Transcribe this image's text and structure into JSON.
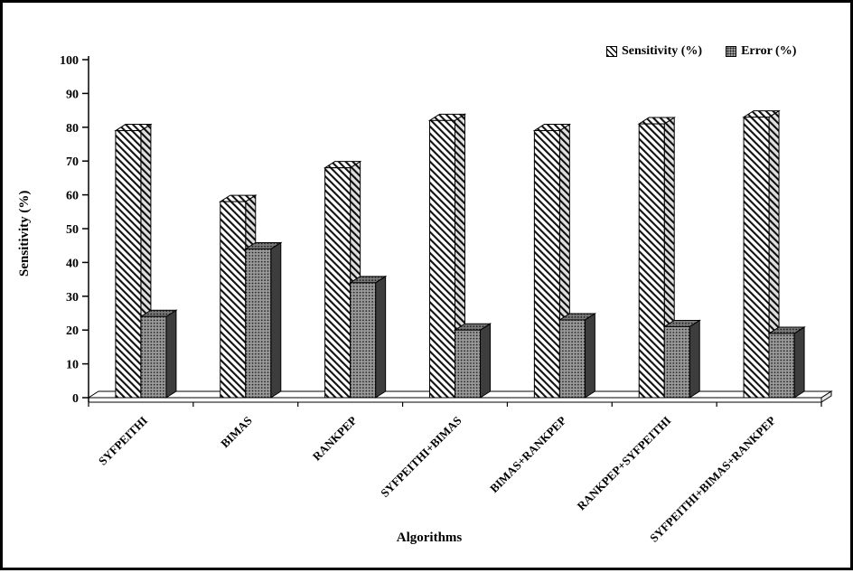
{
  "frame": {
    "background": "#ffffff",
    "border_color": "#000000"
  },
  "legend": {
    "items": [
      {
        "label": "Sensitivity (%)",
        "swatch": "diagonal-hatch"
      },
      {
        "label": "Error (%)",
        "swatch": "dot-grid"
      }
    ]
  },
  "axes": {
    "ylabel": "Sensitivity (%)",
    "xlabel": "Algorithms",
    "yticks": [
      0,
      10,
      20,
      30,
      40,
      50,
      60,
      70,
      80,
      90,
      100
    ]
  },
  "chart_data": {
    "type": "bar",
    "style": "3d",
    "title": "",
    "xlabel": "Algorithms",
    "ylabel": "Sensitivity (%)",
    "ylim": [
      0,
      100
    ],
    "ytick_step": 10,
    "grid": false,
    "legend_position": "top-right",
    "categories": [
      "SYFPEITHI",
      "BIMAS",
      "RANKPEP",
      "SYFPEITHI+BIMAS",
      "BIMAS+RANKPEP",
      "RANKPEP+SYFPEITHI",
      "SYFPEITHI+BIMAS+RANKPEP"
    ],
    "series": [
      {
        "name": "Sensitivity (%)",
        "pattern": "diagonal-hatch",
        "values": [
          79,
          58,
          68,
          82,
          79,
          81,
          83
        ]
      },
      {
        "name": "Error (%)",
        "pattern": "dot-grid",
        "values": [
          24,
          44,
          34,
          20,
          23,
          21,
          19
        ]
      }
    ],
    "colors": {
      "hatch_fg": "#000000",
      "hatch_bg": "#ffffff",
      "dots_bg": "#9a9a9a",
      "dots_fg": "#1a1a1a",
      "side_dark": "#3d3d3d"
    }
  }
}
